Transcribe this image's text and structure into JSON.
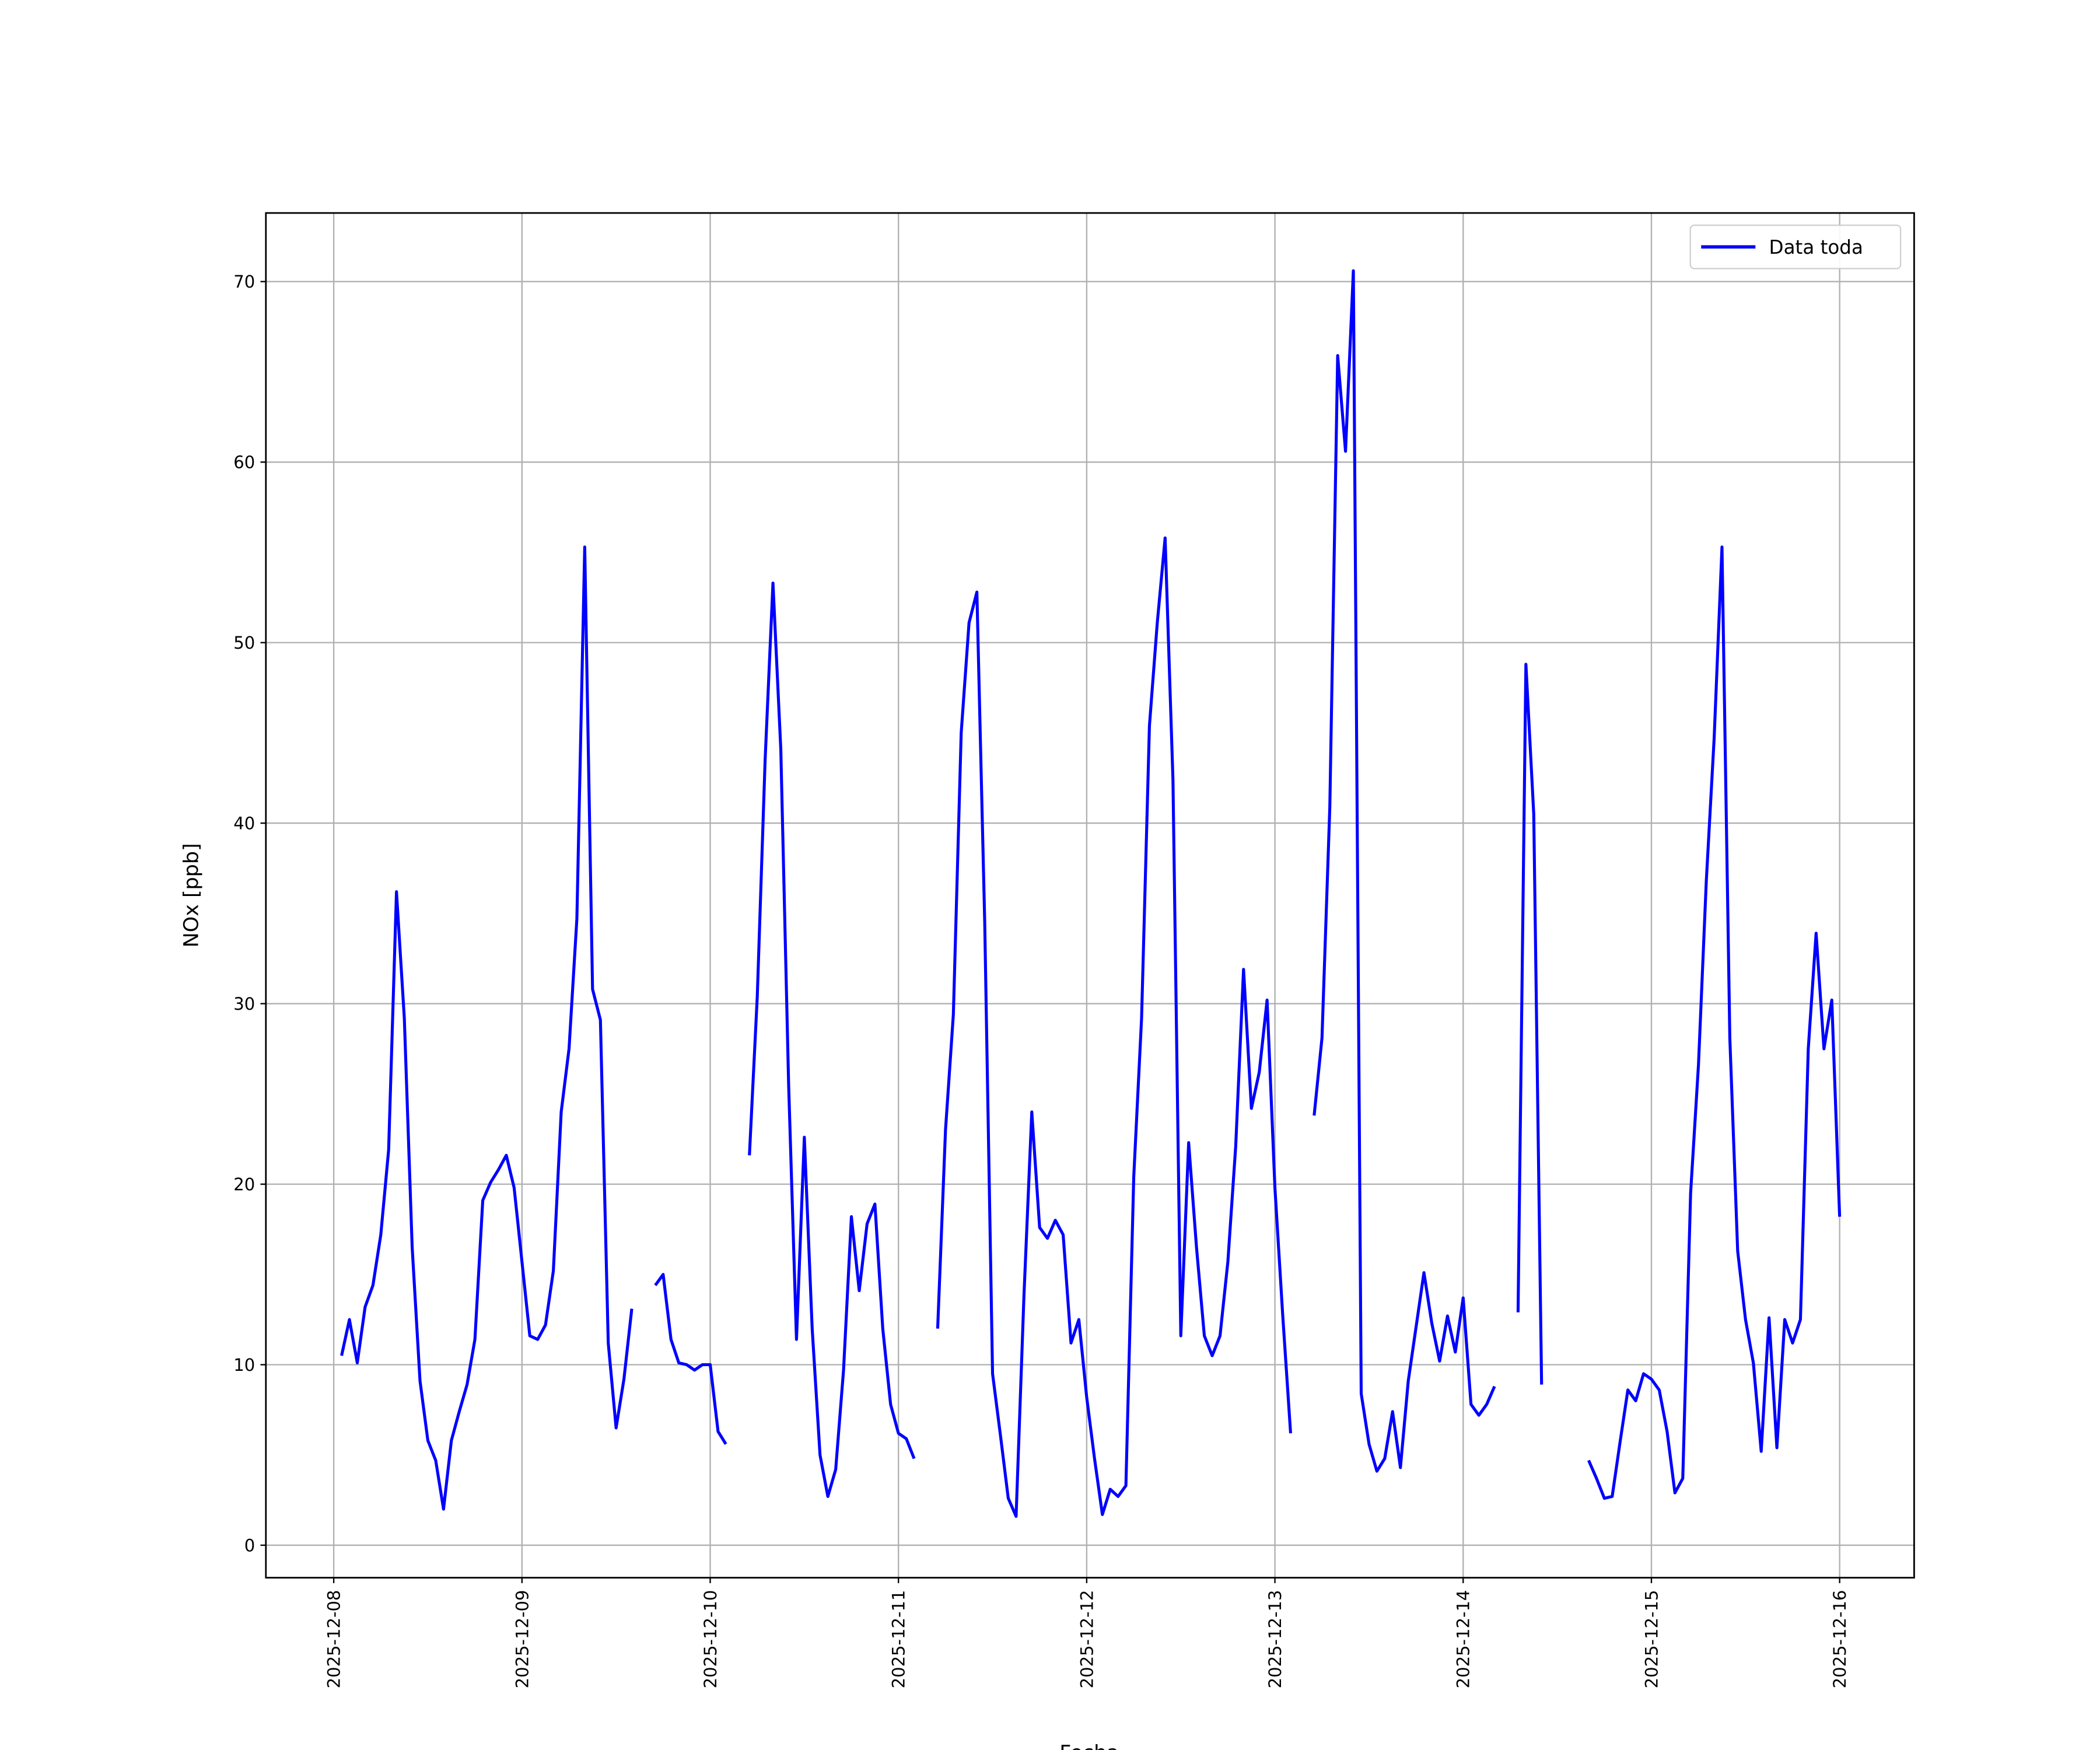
{
  "chart_data": {
    "type": "line",
    "xlabel": "Fecha",
    "ylabel": "NOx [ppb]",
    "x": [
      "2025-12-08 01:00",
      "2025-12-08 02:00",
      "2025-12-08 03:00",
      "2025-12-08 04:00",
      "2025-12-08 05:00",
      "2025-12-08 06:00",
      "2025-12-08 07:00",
      "2025-12-08 08:00",
      "2025-12-08 09:00",
      "2025-12-08 10:00",
      "2025-12-08 11:00",
      "2025-12-08 12:00",
      "2025-12-08 13:00",
      "2025-12-08 14:00",
      "2025-12-08 15:00",
      "2025-12-08 16:00",
      "2025-12-08 17:00",
      "2025-12-08 18:00",
      "2025-12-08 19:00",
      "2025-12-08 20:00",
      "2025-12-08 21:00",
      "2025-12-08 22:00",
      "2025-12-08 23:00",
      "2025-12-09 00:00",
      "2025-12-09 01:00",
      "2025-12-09 02:00",
      "2025-12-09 03:00",
      "2025-12-09 04:00",
      "2025-12-09 05:00",
      "2025-12-09 06:00",
      "2025-12-09 07:00",
      "2025-12-09 08:00",
      "2025-12-09 09:00",
      "2025-12-09 10:00",
      "2025-12-09 11:00",
      "2025-12-09 12:00",
      "2025-12-09 13:00",
      "2025-12-09 14:00",
      "2025-12-09 15:00",
      "2025-12-09 16:00",
      "2025-12-09 17:00",
      "2025-12-09 18:00",
      "2025-12-09 19:00",
      "2025-12-09 20:00",
      "2025-12-09 21:00",
      "2025-12-09 22:00",
      "2025-12-09 23:00",
      "2025-12-10 00:00",
      "2025-12-10 01:00",
      "2025-12-10 02:00",
      "2025-12-10 03:00",
      "2025-12-10 04:00",
      "2025-12-10 05:00",
      "2025-12-10 06:00",
      "2025-12-10 07:00",
      "2025-12-10 08:00",
      "2025-12-10 09:00",
      "2025-12-10 10:00",
      "2025-12-10 11:00",
      "2025-12-10 12:00",
      "2025-12-10 13:00",
      "2025-12-10 14:00",
      "2025-12-10 15:00",
      "2025-12-10 16:00",
      "2025-12-10 17:00",
      "2025-12-10 18:00",
      "2025-12-10 19:00",
      "2025-12-10 20:00",
      "2025-12-10 21:00",
      "2025-12-10 22:00",
      "2025-12-10 23:00",
      "2025-12-11 00:00",
      "2025-12-11 01:00",
      "2025-12-11 02:00",
      "2025-12-11 03:00",
      "2025-12-11 04:00",
      "2025-12-11 05:00",
      "2025-12-11 06:00",
      "2025-12-11 07:00",
      "2025-12-11 08:00",
      "2025-12-11 09:00",
      "2025-12-11 10:00",
      "2025-12-11 11:00",
      "2025-12-11 12:00",
      "2025-12-11 13:00",
      "2025-12-11 14:00",
      "2025-12-11 15:00",
      "2025-12-11 16:00",
      "2025-12-11 17:00",
      "2025-12-11 18:00",
      "2025-12-11 19:00",
      "2025-12-11 20:00",
      "2025-12-11 21:00",
      "2025-12-11 22:00",
      "2025-12-11 23:00",
      "2025-12-12 00:00",
      "2025-12-12 01:00",
      "2025-12-12 02:00",
      "2025-12-12 03:00",
      "2025-12-12 04:00",
      "2025-12-12 05:00",
      "2025-12-12 06:00",
      "2025-12-12 07:00",
      "2025-12-12 08:00",
      "2025-12-12 09:00",
      "2025-12-12 10:00",
      "2025-12-12 11:00",
      "2025-12-12 12:00",
      "2025-12-12 13:00",
      "2025-12-12 14:00",
      "2025-12-12 15:00",
      "2025-12-12 16:00",
      "2025-12-12 17:00",
      "2025-12-12 18:00",
      "2025-12-12 19:00",
      "2025-12-12 20:00",
      "2025-12-12 21:00",
      "2025-12-12 22:00",
      "2025-12-12 23:00",
      "2025-12-13 00:00",
      "2025-12-13 01:00",
      "2025-12-13 02:00",
      "2025-12-13 03:00",
      "2025-12-13 04:00",
      "2025-12-13 05:00",
      "2025-12-13 06:00",
      "2025-12-13 07:00",
      "2025-12-13 08:00",
      "2025-12-13 09:00",
      "2025-12-13 10:00",
      "2025-12-13 11:00",
      "2025-12-13 12:00",
      "2025-12-13 13:00",
      "2025-12-13 14:00",
      "2025-12-13 15:00",
      "2025-12-13 16:00",
      "2025-12-13 17:00",
      "2025-12-13 18:00",
      "2025-12-13 19:00",
      "2025-12-13 20:00",
      "2025-12-13 21:00",
      "2025-12-13 22:00",
      "2025-12-13 23:00",
      "2025-12-14 00:00",
      "2025-12-14 01:00",
      "2025-12-14 02:00",
      "2025-12-14 03:00",
      "2025-12-14 04:00",
      "2025-12-14 05:00",
      "2025-12-14 06:00",
      "2025-12-14 07:00",
      "2025-12-14 08:00",
      "2025-12-14 09:00",
      "2025-12-14 10:00",
      "2025-12-14 11:00",
      "2025-12-14 12:00",
      "2025-12-14 13:00",
      "2025-12-14 14:00",
      "2025-12-14 15:00",
      "2025-12-14 16:00",
      "2025-12-14 17:00",
      "2025-12-14 18:00",
      "2025-12-14 19:00",
      "2025-12-14 20:00",
      "2025-12-14 21:00",
      "2025-12-14 22:00",
      "2025-12-14 23:00",
      "2025-12-15 00:00",
      "2025-12-15 01:00",
      "2025-12-15 02:00",
      "2025-12-15 03:00",
      "2025-12-15 04:00",
      "2025-12-15 05:00",
      "2025-12-15 06:00",
      "2025-12-15 07:00",
      "2025-12-15 08:00",
      "2025-12-15 09:00",
      "2025-12-15 10:00",
      "2025-12-15 11:00",
      "2025-12-15 12:00",
      "2025-12-15 13:00",
      "2025-12-15 14:00",
      "2025-12-15 15:00",
      "2025-12-15 16:00",
      "2025-12-15 17:00",
      "2025-12-15 18:00",
      "2025-12-15 19:00",
      "2025-12-15 20:00",
      "2025-12-15 21:00",
      "2025-12-15 22:00",
      "2025-12-15 23:00",
      "2025-12-16 00:00"
    ],
    "series": [
      {
        "name": "Data toda",
        "color": "#0000ff",
        "values": [
          10.5,
          12.5,
          10.1,
          13.2,
          14.4,
          17.2,
          21.9,
          36.2,
          29.2,
          16.5,
          9.1,
          5.8,
          4.7,
          2.0,
          5.8,
          7.4,
          8.9,
          11.4,
          19.1,
          20.1,
          20.8,
          21.6,
          19.8,
          15.7,
          11.6,
          11.4,
          12.2,
          15.2,
          24.0,
          27.5,
          34.7,
          55.3,
          30.8,
          29.1,
          11.2,
          6.5,
          9.2,
          13.1,
          null,
          null,
          14.4,
          15.0,
          11.4,
          10.1,
          10.0,
          9.7,
          10.0,
          10.0,
          6.3,
          5.6,
          null,
          null,
          21.6,
          30.4,
          43.5,
          53.3,
          44.1,
          25.5,
          11.4,
          22.6,
          12.0,
          5.0,
          2.7,
          4.2,
          9.7,
          18.2,
          14.1,
          17.8,
          18.9,
          12.0,
          7.8,
          6.2,
          5.9,
          4.8,
          null,
          null,
          12.0,
          23.0,
          29.4,
          45.0,
          51.1,
          52.8,
          34.5,
          9.5,
          6.1,
          2.6,
          1.6,
          13.8,
          24.0,
          17.6,
          17.0,
          18.0,
          17.2,
          11.2,
          12.5,
          8.2,
          4.8,
          1.7,
          3.1,
          2.7,
          3.3,
          20.4,
          29.2,
          45.4,
          51.1,
          55.8,
          42.4,
          11.6,
          22.3,
          16.5,
          11.6,
          10.5,
          11.6,
          15.7,
          22.1,
          31.9,
          24.2,
          26.2,
          30.2,
          19.8,
          12.7,
          6.2,
          null,
          null,
          23.8,
          28.1,
          40.9,
          65.9,
          60.6,
          70.6,
          8.4,
          5.6,
          4.1,
          4.8,
          7.4,
          4.3,
          9.1,
          12.1,
          15.1,
          12.3,
          10.2,
          12.7,
          10.7,
          13.7,
          7.8,
          7.2,
          7.8,
          8.8,
          null,
          null,
          12.9,
          48.8,
          40.5,
          8.9,
          null,
          null,
          null,
          null,
          null,
          4.7,
          3.7,
          2.6,
          2.7,
          5.7,
          8.6,
          8.0,
          9.5,
          9.2,
          8.6,
          6.3,
          2.9,
          3.7,
          19.5,
          26.6,
          36.8,
          44.7,
          55.3,
          28.1,
          16.3,
          12.5,
          10.1,
          5.2,
          12.6,
          5.4,
          12.5,
          11.2,
          12.5,
          27.5,
          33.9,
          27.5,
          30.2,
          18.2
        ]
      }
    ],
    "xlim": [
      "2025-12-07 15:21",
      "2025-12-16 09:30"
    ],
    "xticks": [
      "2025-12-08",
      "2025-12-09",
      "2025-12-10",
      "2025-12-11",
      "2025-12-12",
      "2025-12-13",
      "2025-12-14",
      "2025-12-15",
      "2025-12-16"
    ],
    "ylim": [
      -1.8,
      73.8
    ],
    "yticks": [
      0,
      10,
      20,
      30,
      40,
      50,
      60,
      70
    ],
    "grid": true,
    "legend": "upper right"
  }
}
